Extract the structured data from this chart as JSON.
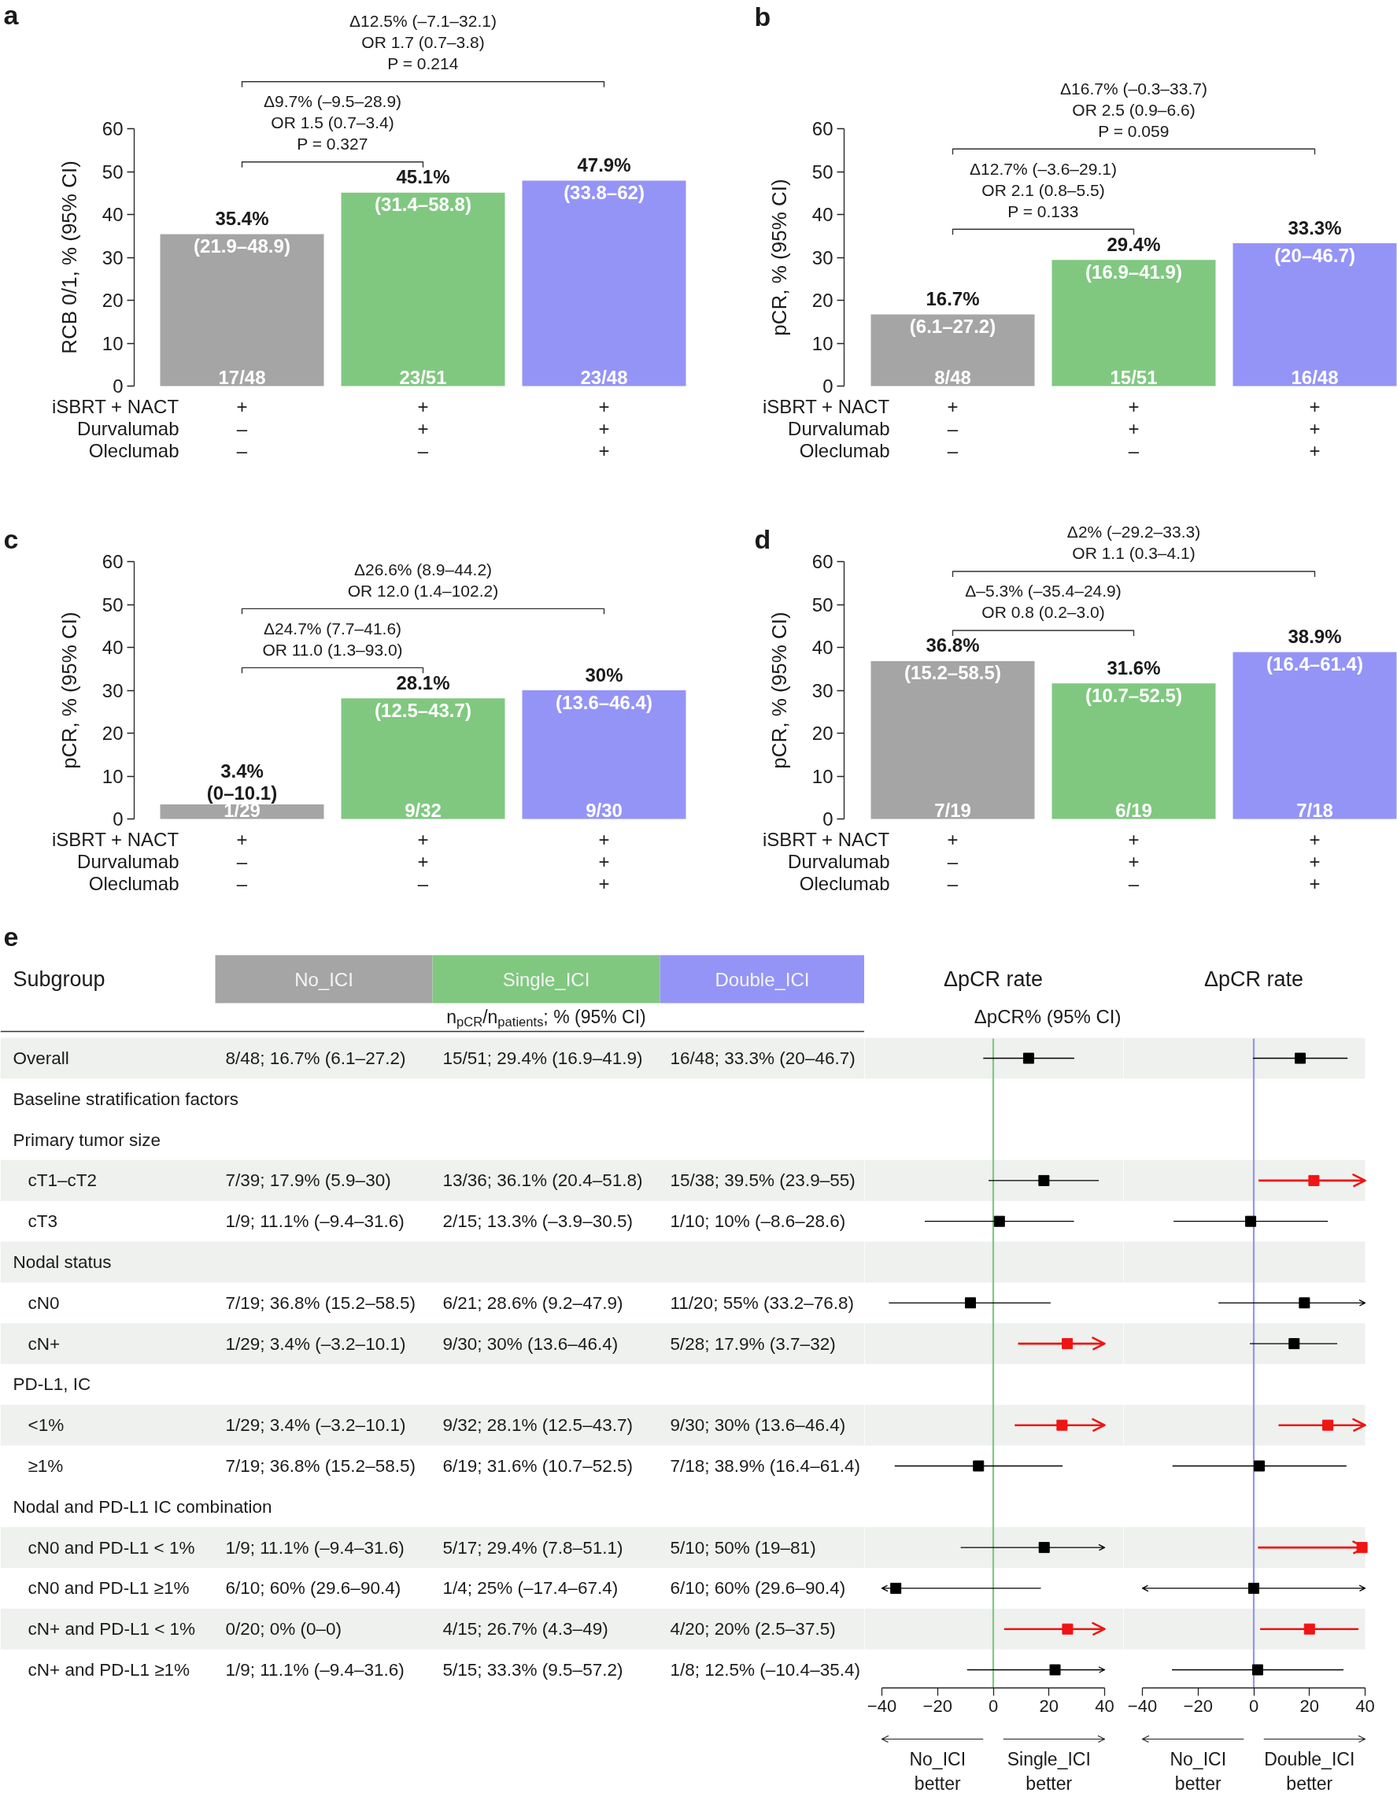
{
  "chart_data": [
    {
      "type": "bar",
      "title": "a",
      "ylabel": "RCB 0/1, % (95% CI)",
      "categories": [
        "+\n–\n–",
        "+\n+\n–",
        "+\n+\n+"
      ],
      "values": [
        35.4,
        45.1,
        47.9
      ],
      "colors": [
        "#a5a5a5",
        "#80c880",
        "#9494f7"
      ],
      "ylim": [
        0,
        60
      ],
      "yticks": [
        0,
        10,
        20,
        30,
        40,
        50,
        60
      ],
      "value_labels": [
        "35.4%",
        "45.1%",
        "47.9%"
      ],
      "annotations": [
        "iSBRT + NACT\nDurvalumab\nOleclumab",
        "Δ12.5% (–7.1–32.1)\nOR 1.7 (0.7–3.8)\nP = 0.214",
        "Δ9.7% (–9.5–28.9)\nOR 1.5 (0.7–3.4)\nP = 0.327",
        {
          "text": "(21.9–48.9)",
          "x": "+\n–\n–",
          "y": 35.4
        },
        {
          "text": "(31.4–58.8)",
          "x": "+\n+\n–",
          "y": 45.1
        },
        {
          "text": "(33.8–62)",
          "x": "+\n+\n+",
          "y": 47.9
        },
        {
          "text": "17/48",
          "x": "+\n–\n–",
          "y": 0
        },
        {
          "text": "23/51",
          "x": "+\n+\n–",
          "y": 0
        },
        {
          "text": "23/48",
          "x": "+\n+\n+",
          "y": 0
        }
      ]
    },
    {
      "type": "bar",
      "title": "b",
      "ylabel": "pCR, % (95% CI)",
      "categories": [
        "+\n–\n–",
        "+\n+\n–",
        "+\n+\n+"
      ],
      "values": [
        16.7,
        29.4,
        33.3
      ],
      "colors": [
        "#a5a5a5",
        "#80c880",
        "#9494f7"
      ],
      "ylim": [
        0,
        60
      ],
      "yticks": [
        0,
        10,
        20,
        30,
        40,
        50,
        60
      ],
      "value_labels": [
        "16.7%",
        "29.4%",
        "33.3%"
      ],
      "annotations": [
        "iSBRT + NACT\nDurvalumab\nOleclumab",
        "Δ16.7% (–0.3–33.7)\nOR 2.5 (0.9–6.6)\nP = 0.059",
        "Δ12.7% (–3.6–29.1)\nOR 2.1 (0.8–5.5)\nP = 0.133",
        {
          "text": "(6.1–27.2)",
          "x": "+\n–\n–",
          "y": 16.7
        },
        {
          "text": "(16.9–41.9)",
          "x": "+\n+\n–",
          "y": 29.4
        },
        {
          "text": "(20–46.7)",
          "x": "+\n+\n+",
          "y": 33.3
        },
        {
          "text": "8/48",
          "x": "+\n–\n–",
          "y": 0
        },
        {
          "text": "15/51",
          "x": "+\n+\n–",
          "y": 0
        },
        {
          "text": "16/48",
          "x": "+\n+\n+",
          "y": 0
        }
      ]
    },
    {
      "type": "bar",
      "title": "c",
      "ylabel": "pCR, % (95% CI)",
      "categories": [
        "+\n–\n–",
        "+\n+\n–",
        "+\n+\n+"
      ],
      "values": [
        3.4,
        28.1,
        30
      ],
      "colors": [
        "#a5a5a5",
        "#80c880",
        "#9494f7"
      ],
      "ylim": [
        0,
        60
      ],
      "yticks": [
        0,
        10,
        20,
        30,
        40,
        50,
        60
      ],
      "value_labels": [
        "3.4%",
        "28.1%",
        "30%"
      ],
      "annotations": [
        "iSBRT + NACT\nDurvalumab\nOleclumab",
        "Δ26.6% (8.9–44.2)\nOR 12.0 (1.4–102.2)",
        "Δ24.7% (7.7–41.6)\nOR 11.0 (1.3–93.0)",
        {
          "text": "(0–10.1)",
          "x": "+\n–\n–",
          "y": 3.4
        },
        {
          "text": "(12.5–43.7)",
          "x": "+\n+\n–",
          "y": 28.1
        },
        {
          "text": "(13.6–46.4)",
          "x": "+\n+\n+",
          "y": 30
        },
        {
          "text": "1/29",
          "x": "+\n–\n–",
          "y": 0
        },
        {
          "text": "9/32",
          "x": "+\n+\n–",
          "y": 0
        },
        {
          "text": "9/30",
          "x": "+\n+\n+",
          "y": 0
        }
      ]
    },
    {
      "type": "bar",
      "title": "d",
      "ylabel": "pCR, % (95% CI)",
      "categories": [
        "+\n–\n–",
        "+\n+\n–",
        "+\n+\n+"
      ],
      "values": [
        36.8,
        31.6,
        38.9
      ],
      "colors": [
        "#a5a5a5",
        "#80c880",
        "#9494f7"
      ],
      "ylim": [
        0,
        60
      ],
      "yticks": [
        0,
        10,
        20,
        30,
        40,
        50,
        60
      ],
      "value_labels": [
        "36.8%",
        "31.6%",
        "38.9%"
      ],
      "annotations": [
        "iSBRT + NACT\nDurvalumab\nOleclumab",
        "Δ2% (–29.2–33.3)\nOR 1.1 (0.3–4.1)",
        "Δ–5.3% (–35.4–24.9)\nOR 0.8 (0.2–3.0)",
        {
          "text": "(15.2–58.5)",
          "x": "+\n–\n–",
          "y": 36.8
        },
        {
          "text": "(10.7–52.5)",
          "x": "+\n+\n–",
          "y": 31.6
        },
        {
          "text": "(16.4–61.4)",
          "x": "+\n+\n+",
          "y": 38.9
        },
        {
          "text": "7/19",
          "x": "+\n–\n–",
          "y": 0
        },
        {
          "text": "6/19",
          "x": "+\n+\n–",
          "y": 0
        },
        {
          "text": "7/18",
          "x": "+\n+\n+",
          "y": 0
        }
      ]
    },
    {
      "type": "other",
      "title": "e",
      "colors": [
        "#a5a5a5",
        "#80c880",
        "#9494f7"
      ],
      "annotations": [
        "Subgroup\tNo_ICI\tSingle_ICI\tDouble_ICI",
        "\t\tn$_{pCR}$/n$_{patients}$; % (95% CI)",
        "Overall\t8/48; 16.7% (6.1–27.2)\t15/51; 29.4% (16.9–41.9)\t16/48; 33.3% (20–46.7)",
        "Baseline stratification factors",
        "Primary tumor size",
        "cT1–cT2\t7/39; 17.9% (5.9–30)\t13/36; 36.1% (20.4–51.8)\t15/38; 39.5% (23.9–55)",
        "cT3\t1/9; 11.1% (–9.4–31.6)\t2/15; 13.3% (–3.9–30.5)\t1/10; 10% (–8.6–28.6)",
        "Nodal status",
        "cN0\t7/19; 36.8% (15.2–58.5)\t6/21; 28.6% (9.2–47.9)\t11/20; 55% (33.2–76.8)",
        "cN+\t1/29; 3.4% (–3.2–10.1)\t9/30; 30% (13.6–46.4)\t5/28; 17.9% (3.7–32)",
        "PD-L1, IC",
        "<1%\t1/29; 3.4% (–3.2–10.1)\t9/32; 28.1% (12.5–43.7)\t9/30; 30% (13.6–46.4)",
        "≥1%\t7/19; 36.8% (15.2–58.5)\t6/19; 31.6% (10.7–52.5)\t7/18; 38.9% (16.4–61.4)",
        "Nodal and PD-L1 IC combination",
        "cN0 and PD-L1 < 1%\t1/9; 11.1% (–9.4–31.6)\t5/17; 29.4% (7.8–51.1)\t5/10; 50% (19–81)",
        "cN0 and PD-L1 ≥1%\t6/10; 60% (29.6–90.4)\t1/4; 25% (–17.4–67.4)\t6/10; 60% (29.6–90.4)",
        "cN+ and PD-L1 < 1%\t0/20; 0% (0–0)\t4/15; 26.7% (4.3–49)\t4/20; 20% (2.5–37.5)",
        "cN+ and PD-L1 ≥1%\t1/9; 11.1% (–9.4–31.6)\t5/15; 33.3% (9.5–57.2)\t1/8; 12.5% (–10.4–35.4)"
      ]
    },
    {
      "type": "scatter",
      "orientation": "horizontal",
      "title": "ΔpCR rate",
      "subtitle": "ΔpCR% (95% CI)",
      "tick_labels": "x",
      "marker": "square",
      "categories": [
        "Overall",
        "Baseline stratification factors",
        "Primary tumor size",
        "cT1–cT2",
        "cT3",
        "Nodal status",
        "cN0",
        "cN+",
        "PD-L1, IC",
        "<1%",
        "≥1%",
        "Nodal and PD-L1 IC combination",
        "cN0 and PD-L1 < 1%",
        "cN0 and PD-L1 ≥1%",
        "cN+ and PD-L1 < 1%",
        "cN+ and PD-L1 ≥1%"
      ],
      "values": [
        12.7,
        null,
        null,
        18.2,
        2.2,
        null,
        -8.2,
        26.6,
        null,
        24.7,
        -5.3,
        null,
        18.3,
        -35,
        26.7,
        22.2
      ],
      "errors": [
        [
          -3.6,
          29.1
        ],
        null,
        null,
        [
          -1.7,
          37.9
        ],
        [
          -24.6,
          29
        ],
        null,
        [
          -37.5,
          20.6
        ],
        [
          8.9,
          40
        ],
        null,
        [
          7.7,
          40
        ],
        [
          -35.4,
          24.9
        ],
        null,
        [
          -11.7,
          40
        ],
        [
          -40,
          17.1
        ],
        [
          3.9,
          40
        ],
        [
          -9.4,
          40
        ]
      ],
      "colors": [
        "#000000",
        null,
        null,
        "#000000",
        "#000000",
        null,
        "#000000",
        "#f01414",
        null,
        "#f01414",
        "#000000",
        null,
        "#000000",
        "#000000",
        "#f01414",
        "#000000"
      ],
      "xlim": [
        -40,
        40
      ],
      "xticks": [
        -40,
        -20,
        0,
        20,
        40
      ],
      "ref_lines": [
        {
          "axis": "x",
          "value": 0,
          "color": "#7fc97f"
        }
      ],
      "bands": [
        {
          "axis": "y",
          "from": "Overall",
          "to": "Overall",
          "color": "#eef1ee"
        },
        {
          "axis": "y",
          "from": "cT1–cT2",
          "to": "cT1–cT2",
          "color": "#eef1ee"
        },
        {
          "axis": "y",
          "from": "Nodal status",
          "to": "Nodal status",
          "color": "#eef1ee"
        },
        {
          "axis": "y",
          "from": "cN+",
          "to": "cN+",
          "color": "#eef1ee"
        },
        {
          "axis": "y",
          "from": "<1%",
          "to": "<1%",
          "color": "#eef1ee"
        },
        {
          "axis": "y",
          "from": "cN0 and PD-L1 < 1%",
          "to": "cN0 and PD-L1 < 1%",
          "color": "#eef1ee"
        },
        {
          "axis": "y",
          "from": "cN+ and PD-L1 < 1%",
          "to": "cN+ and PD-L1 < 1%",
          "color": "#eef1ee"
        }
      ],
      "annotations": [
        "No_ICI\nbetter",
        "Single_ICI\nbetter"
      ]
    },
    {
      "type": "scatter",
      "orientation": "horizontal",
      "title": "ΔpCR rate",
      "tick_labels": "x",
      "marker": "square",
      "categories": [
        "Overall",
        "Baseline stratification factors",
        "Primary tumor size",
        "cT1–cT2",
        "cT3",
        "Nodal status",
        "cN0",
        "cN+",
        "PD-L1, IC",
        "<1%",
        "≥1%",
        "Nodal and PD-L1 IC combination",
        "cN0 and PD-L1 < 1%",
        "cN0 and PD-L1 ≥1%",
        "cN+ and PD-L1 < 1%",
        "cN+ and PD-L1 ≥1%"
      ],
      "values": [
        16.7,
        null,
        null,
        21.6,
        -1.1,
        null,
        18.2,
        14.5,
        null,
        26.6,
        2,
        null,
        38.9,
        0,
        20,
        1.4
      ],
      "errors": [
        [
          -0.3,
          33.7
        ],
        null,
        null,
        [
          1.7,
          40
        ],
        [
          -28.8,
          26.6
        ],
        null,
        [
          -12.7,
          40
        ],
        [
          -1.4,
          30
        ],
        null,
        [
          8.9,
          40
        ],
        [
          -29.2,
          33.3
        ],
        null,
        [
          1.5,
          40
        ],
        [
          -40,
          40
        ],
        [
          2.3,
          37.6
        ],
        [
          -29.4,
          32.2
        ]
      ],
      "colors": [
        "#000000",
        null,
        null,
        "#f01414",
        "#000000",
        null,
        "#000000",
        "#000000",
        null,
        "#f01414",
        "#000000",
        null,
        "#f01414",
        "#000000",
        "#f01414",
        "#000000"
      ],
      "xlim": [
        -40,
        40
      ],
      "xticks": [
        -40,
        -20,
        0,
        20,
        40
      ],
      "ref_lines": [
        {
          "axis": "x",
          "value": 0,
          "color": "#9494f7"
        }
      ],
      "bands": [
        {
          "axis": "y",
          "from": "Overall",
          "to": "Overall",
          "color": "#eef1ee"
        },
        {
          "axis": "y",
          "from": "cT1–cT2",
          "to": "cT1–cT2",
          "color": "#eef1ee"
        },
        {
          "axis": "y",
          "from": "Nodal status",
          "to": "Nodal status",
          "color": "#eef1ee"
        },
        {
          "axis": "y",
          "from": "cN+",
          "to": "cN+",
          "color": "#eef1ee"
        },
        {
          "axis": "y",
          "from": "<1%",
          "to": "<1%",
          "color": "#eef1ee"
        },
        {
          "axis": "y",
          "from": "cN0 and PD-L1 < 1%",
          "to": "cN0 and PD-L1 < 1%",
          "color": "#eef1ee"
        },
        {
          "axis": "y",
          "from": "cN+ and PD-L1 < 1%",
          "to": "cN+ and PD-L1 < 1%",
          "color": "#eef1ee"
        }
      ],
      "annotations": [
        "No_ICI\nbetter",
        "Double_ICI\nbetter"
      ]
    }
  ]
}
